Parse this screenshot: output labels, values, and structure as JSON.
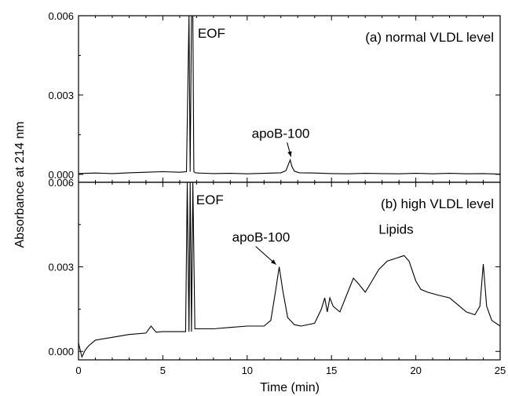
{
  "chart_data": {
    "type": "line",
    "xlabel": "Time (min)",
    "ylabel": "Absorbance at 214 nm",
    "xlim": [
      0,
      25
    ],
    "x_ticks": [
      "0",
      "5",
      "10",
      "15",
      "20",
      "25"
    ],
    "grid": false,
    "colors": {
      "line": "#000000",
      "axis": "#000000"
    },
    "panels": [
      {
        "id": "a",
        "label": "(a) normal VLDL level",
        "ylim": [
          -0.0003,
          0.006
        ],
        "y_ticks": [
          "0.000",
          "0.003",
          "0.006"
        ],
        "y_tick_values": [
          0,
          0.003,
          0.006
        ],
        "annotations": [
          {
            "text": "EOF",
            "x": 6.7,
            "y": 0.006
          },
          {
            "text": "apoB-100",
            "x": 12.6,
            "y": 0.00055
          }
        ],
        "series": [
          {
            "x": [
              0,
              1,
              2,
              3,
              4,
              5,
              6,
              6.4,
              6.55,
              6.62,
              6.7,
              6.78,
              6.84,
              6.92,
              7.1,
              8,
              9,
              10,
              11,
              12,
              12.3,
              12.55,
              12.65,
              12.8,
              13.1,
              14,
              15,
              16,
              17,
              18,
              19,
              20,
              21,
              22,
              23,
              24,
              25
            ],
            "y": [
              3e-05,
              5e-05,
              3e-05,
              6e-05,
              8e-05,
              0.0001,
              8e-05,
              0.0001,
              0.006,
              0.0001,
              0.006,
              0.006,
              0.0001,
              6e-05,
              5e-05,
              3e-05,
              4e-05,
              2e-05,
              4e-05,
              6e-05,
              0.00014,
              0.00055,
              0.0003,
              0.00012,
              6e-05,
              5e-05,
              3e-05,
              2e-05,
              4e-05,
              3e-05,
              2e-05,
              4e-05,
              2e-05,
              4e-05,
              2e-05,
              3e-05,
              1e-05
            ]
          }
        ]
      },
      {
        "id": "b",
        "label": "(b) high VLDL level",
        "ylim": [
          -0.0003,
          0.006
        ],
        "y_ticks": [
          "0.000",
          "0.003",
          "0.006"
        ],
        "y_tick_values": [
          0,
          0.003,
          0.006
        ],
        "annotations": [
          {
            "text": "EOF",
            "x": 6.6,
            "y": 0.006
          },
          {
            "text": "apoB-100",
            "x": 11.9,
            "y": 0.003
          },
          {
            "text": "Lipids",
            "x": 19.2,
            "y": 0.0034
          }
        ],
        "series": [
          {
            "x": [
              0,
              0.2,
              0.4,
              0.6,
              1,
              2,
              3,
              4,
              4.3,
              4.6,
              5,
              6,
              6.35,
              6.45,
              6.55,
              6.62,
              6.7,
              6.78,
              6.9,
              7,
              8,
              9,
              10,
              11,
              11.4,
              11.7,
              11.9,
              12.1,
              12.4,
              12.8,
              13.2,
              14,
              14.4,
              14.6,
              14.75,
              14.9,
              15.1,
              15.5,
              15.9,
              16.3,
              16.6,
              17,
              17.4,
              17.8,
              18.3,
              18.8,
              19.3,
              19.6,
              20,
              20.3,
              20.7,
              21.3,
              22,
              22.6,
              23,
              23.5,
              23.8,
              24,
              24.2,
              24.5,
              25
            ],
            "y": [
              0.0003,
              -0.0002,
              5e-05,
              0.0002,
              0.0004,
              0.0005,
              0.0006,
              0.00065,
              0.0009,
              0.00068,
              0.0007,
              0.0007,
              0.0007,
              0.006,
              0.0007,
              0.006,
              0.0007,
              0.006,
              0.0008,
              0.0008,
              0.0008,
              0.00085,
              0.0009,
              0.0009,
              0.0011,
              0.0022,
              0.003,
              0.0022,
              0.0012,
              0.00095,
              0.0009,
              0.001,
              0.0015,
              0.0019,
              0.0014,
              0.0019,
              0.0016,
              0.0014,
              0.002,
              0.0026,
              0.0024,
              0.0021,
              0.0025,
              0.0029,
              0.0032,
              0.0033,
              0.0034,
              0.0032,
              0.0025,
              0.0022,
              0.0021,
              0.002,
              0.0019,
              0.0016,
              0.0014,
              0.0013,
              0.0016,
              0.0031,
              0.0016,
              0.0011,
              0.0009
            ]
          }
        ]
      }
    ]
  }
}
